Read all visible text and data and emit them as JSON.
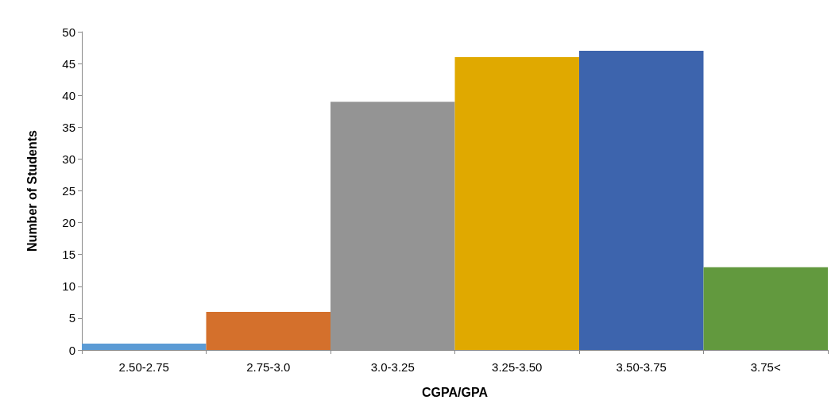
{
  "chart_data": {
    "type": "bar",
    "xlabel": "CGPA/GPA",
    "ylabel": "Number of Students",
    "categories": [
      "2.50-2.75",
      "2.75-3.0",
      "3.0-3.25",
      "3.25-3.50",
      "3.50-3.75",
      "3.75<"
    ],
    "values": [
      1,
      6,
      39,
      46,
      47,
      13
    ],
    "colors": [
      "#5b9bd5",
      "#d4702c",
      "#949494",
      "#e0a900",
      "#3d64ad",
      "#62993e"
    ],
    "ylim": [
      0,
      50
    ],
    "yticks": [
      0,
      5,
      10,
      15,
      20,
      25,
      30,
      35,
      40,
      45,
      50
    ],
    "grid": false
  }
}
